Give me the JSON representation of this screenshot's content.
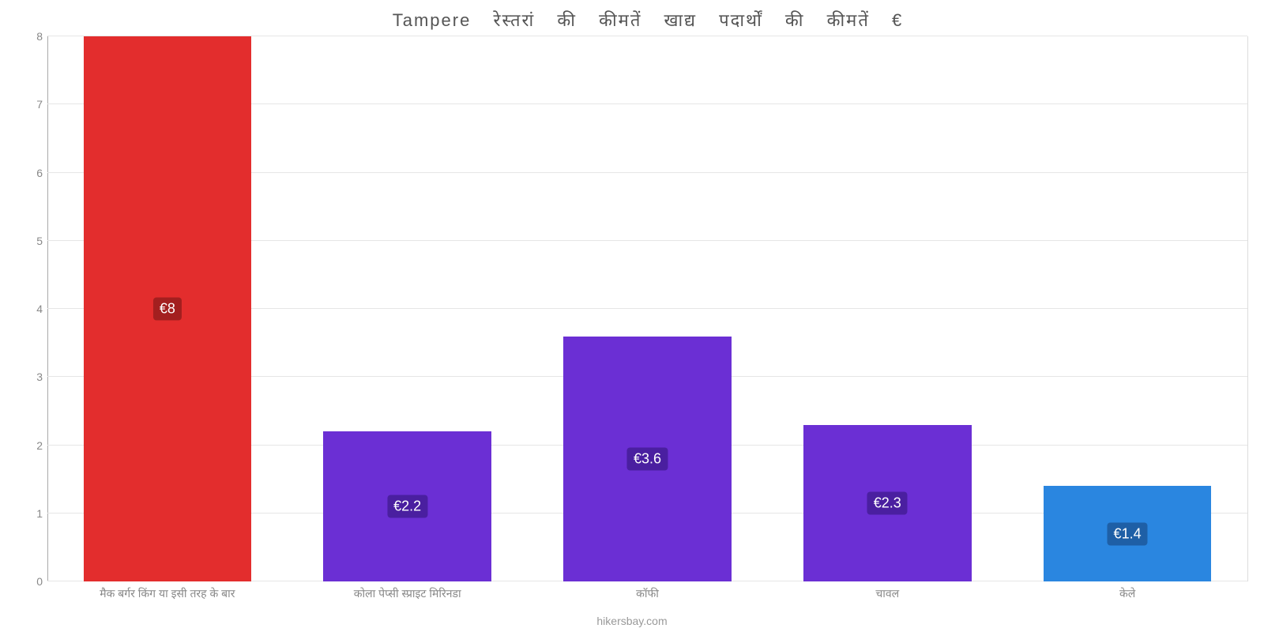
{
  "chart": {
    "type": "bar",
    "title": "Tampere रेस्तरां   की   कीमतें   खाद्य   पदार्थों   की   कीमतें   €",
    "title_fontsize": 22,
    "title_color": "#555555",
    "background_color": "#ffffff",
    "grid_color": "#e6e6e6",
    "axis_color": "#aaaaaa",
    "tick_label_color": "#888888",
    "tick_label_fontsize": 14,
    "x_label_color": "#888888",
    "x_label_fontsize": 14,
    "data_label_fontsize": 18,
    "data_label_color": "#ffffff",
    "ylim": [
      0,
      8
    ],
    "ytick_step": 1,
    "yticks": [
      0,
      1,
      2,
      3,
      4,
      5,
      6,
      7,
      8
    ],
    "bar_width_percent": 70,
    "categories": [
      "मैक बर्गर किंग या इसी तरह के बार",
      "कोला पेप्सी स्प्राइट मिरिनडा",
      "कॉफी",
      "चावल",
      "केले"
    ],
    "values": [
      8,
      2.2,
      3.6,
      2.3,
      1.4
    ],
    "value_labels": [
      "€8",
      "€2.2",
      "€3.6",
      "€2.3",
      "€1.4"
    ],
    "bar_colors": [
      "#e32d2d",
      "#6b2fd4",
      "#6b2fd4",
      "#6b2fd4",
      "#2a86e0"
    ],
    "label_bg_colors": [
      "#a31f1f",
      "#4a1fa0",
      "#4a1fa0",
      "#4a1fa0",
      "#1e5fa6"
    ],
    "credit": "hikersbay.com",
    "credit_color": "#999999",
    "credit_fontsize": 14
  }
}
